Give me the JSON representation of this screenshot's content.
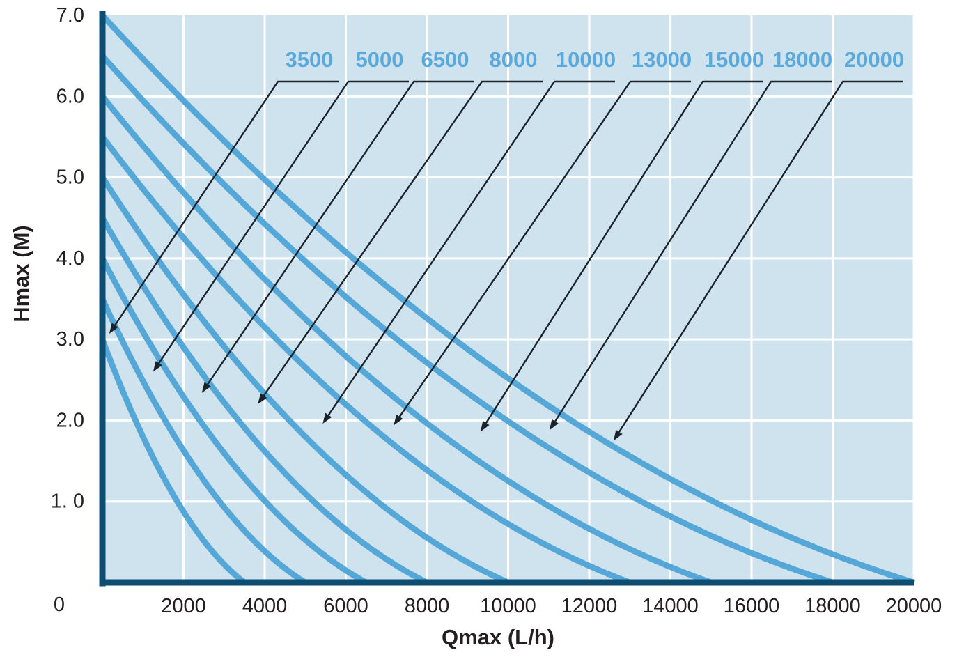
{
  "chart_data": {
    "type": "line",
    "title": "",
    "xlabel": "Qmax (L/h)",
    "ylabel": "Hmax (M)",
    "xlim": [
      0,
      20000
    ],
    "ylim": [
      0,
      7
    ],
    "x_tick_labels": [
      "0",
      "2000",
      "4000",
      "6000",
      "8000",
      "10000",
      "12000",
      "14000",
      "16000",
      "18000",
      "20000"
    ],
    "x_tick_values": [
      0,
      2000,
      4000,
      6000,
      8000,
      10000,
      12000,
      14000,
      16000,
      18000,
      20000
    ],
    "y_tick_labels": [
      "7.0",
      "6.0",
      "5.0",
      "4.0",
      "3.0",
      "2.0",
      "1. 0"
    ],
    "y_tick_values": [
      7,
      6,
      5,
      4,
      3,
      2,
      1
    ],
    "origin_label": "0",
    "grid": true,
    "legend_position": "top callout labels with arrows pointing to each curve",
    "curve_shape": "concave pump curves: steep near y-axis, flattening toward x-intercept",
    "series": [
      {
        "name": "3500",
        "qmax": 3500,
        "hmax": 3.0,
        "points": [
          [
            0,
            3.0
          ],
          [
            3500,
            0
          ]
        ],
        "arrow_tip": [
          170,
          3.07
        ],
        "label_cx": 444
      },
      {
        "name": "5000",
        "qmax": 5000,
        "hmax": 3.5,
        "points": [
          [
            0,
            3.5
          ],
          [
            5000,
            0
          ]
        ],
        "arrow_tip": [
          1250,
          2.6
        ],
        "label_cx": 545
      },
      {
        "name": "6500",
        "qmax": 6500,
        "hmax": 4.0,
        "points": [
          [
            0,
            4.0
          ],
          [
            6500,
            0
          ]
        ],
        "arrow_tip": [
          2450,
          2.34
        ],
        "label_cx": 639
      },
      {
        "name": "8000",
        "qmax": 8000,
        "hmax": 4.5,
        "points": [
          [
            0,
            4.5
          ],
          [
            8000,
            0
          ]
        ],
        "arrow_tip": [
          3830,
          2.2
        ],
        "label_cx": 737
      },
      {
        "name": "10000",
        "qmax": 10000,
        "hmax": 5.0,
        "points": [
          [
            0,
            5.0
          ],
          [
            10000,
            0
          ]
        ],
        "arrow_tip": [
          5430,
          1.96
        ],
        "label_cx": 841
      },
      {
        "name": "13000",
        "qmax": 13000,
        "hmax": 5.5,
        "points": [
          [
            0,
            5.5
          ],
          [
            13000,
            0
          ]
        ],
        "arrow_tip": [
          7180,
          1.94
        ],
        "label_cx": 950
      },
      {
        "name": "15000",
        "qmax": 15000,
        "hmax": 6.0,
        "points": [
          [
            0,
            6.0
          ],
          [
            15000,
            0
          ]
        ],
        "arrow_tip": [
          9320,
          1.86
        ],
        "label_cx": 1054
      },
      {
        "name": "18000",
        "qmax": 18000,
        "hmax": 6.5,
        "points": [
          [
            0,
            6.5
          ],
          [
            18000,
            0
          ]
        ],
        "arrow_tip": [
          11020,
          1.88
        ],
        "label_cx": 1152
      },
      {
        "name": "20000",
        "qmax": 20000,
        "hmax": 7.0,
        "points": [
          [
            0,
            7.0
          ],
          [
            20000,
            0
          ]
        ],
        "arrow_tip": [
          12600,
          1.75
        ],
        "label_cx": 1255
      }
    ]
  },
  "colors": {
    "page_bg": "#ffffff",
    "plot_bg": "#cfe3ef",
    "grid": "#ffffff",
    "curve": "#55a7d7",
    "series_label": "#5aa9da",
    "axis": "#0d4d72",
    "callout": "#1a222b",
    "tick_text": "#231f20"
  }
}
